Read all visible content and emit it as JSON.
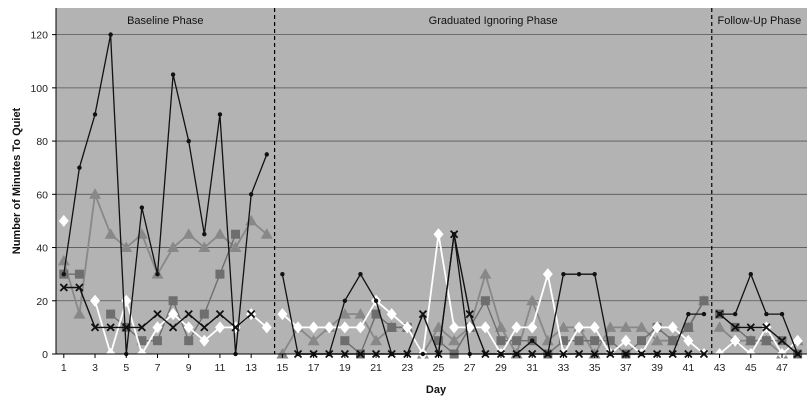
{
  "chart_data": {
    "type": "line",
    "xlabel": "Day",
    "ylabel": "Number of Minutes To Quiet",
    "ylim": [
      0,
      130
    ],
    "xlim": [
      0.5,
      48.6
    ],
    "yticks": [
      0,
      20,
      40,
      60,
      80,
      100,
      120
    ],
    "xticks": [
      1,
      3,
      5,
      7,
      9,
      11,
      13,
      15,
      17,
      19,
      21,
      23,
      25,
      27,
      29,
      31,
      33,
      35,
      37,
      39,
      41,
      43,
      45,
      47
    ],
    "xtick_labels": [
      "1",
      "3",
      "5",
      "7",
      "9",
      "11",
      "13",
      "15",
      "17",
      "19",
      "21",
      "23",
      "25",
      "27",
      "29",
      "31",
      "33",
      "35",
      "37",
      "39",
      "41",
      "43",
      "45",
      "47"
    ],
    "grid": true,
    "plot_background": "#b3b3b3",
    "phases": [
      {
        "label": "Baseline Phase",
        "start": 0.5,
        "end": 14.5
      },
      {
        "label": "Graduated Ignoring Phase",
        "start": 14.5,
        "end": 42.5
      },
      {
        "label": "Follow-Up Phase",
        "start": 42.5,
        "end": 48.6
      }
    ],
    "phase_lines": [
      14.5,
      42.5
    ],
    "series": [
      {
        "marker": "dot",
        "color": "#111111",
        "segments": [
          {
            "x": [
              1,
              2,
              3,
              4,
              5,
              6,
              7,
              8,
              9,
              10,
              11,
              12,
              13,
              14
            ],
            "y": [
              30,
              70,
              90,
              120,
              0,
              55,
              30,
              105,
              80,
              45,
              90,
              0,
              60,
              75
            ]
          },
          {
            "x": [
              15,
              16,
              17,
              18,
              19,
              20,
              21,
              22,
              23,
              24,
              25,
              26,
              27,
              28,
              29,
              30,
              31,
              32,
              33,
              34,
              35,
              36,
              37,
              38,
              39,
              40,
              41,
              42
            ],
            "y": [
              30,
              0,
              0,
              0,
              20,
              30,
              20,
              0,
              0,
              0,
              0,
              45,
              0,
              0,
              0,
              0,
              5,
              0,
              30,
              30,
              30,
              0,
              0,
              0,
              0,
              0,
              15,
              15
            ]
          },
          {
            "x": [
              43,
              44,
              45,
              46,
              47,
              48
            ],
            "y": [
              15,
              15,
              30,
              15,
              15,
              0
            ]
          }
        ]
      },
      {
        "marker": "triangle",
        "color": "#888888",
        "segments": [
          {
            "x": [
              1,
              2,
              3,
              4,
              5,
              6,
              7,
              8,
              9,
              10,
              11,
              12,
              13,
              14
            ],
            "y": [
              35,
              15,
              60,
              45,
              40,
              45,
              30,
              40,
              45,
              40,
              45,
              40,
              50,
              45
            ]
          },
          {
            "x": [
              15,
              16,
              17,
              18,
              19,
              20,
              21,
              22,
              23,
              24,
              25,
              26,
              27,
              28,
              29,
              30,
              31,
              32,
              33,
              34,
              35,
              36,
              37,
              38,
              39,
              40,
              41,
              42
            ],
            "y": [
              0,
              10,
              5,
              10,
              15,
              15,
              5,
              10,
              10,
              0,
              10,
              5,
              10,
              30,
              10,
              0,
              20,
              5,
              10,
              10,
              0,
              10,
              10,
              10,
              5,
              5,
              10,
              20
            ]
          },
          {
            "x": [
              43,
              44,
              45,
              46,
              47,
              48
            ],
            "y": [
              10,
              5,
              5,
              5,
              0,
              5
            ]
          }
        ]
      },
      {
        "marker": "square",
        "color": "#6e6e6e",
        "segments": [
          {
            "x": [
              1,
              2,
              3,
              4,
              5,
              6,
              7,
              8,
              9,
              10,
              11,
              12,
              13,
              14
            ],
            "y": [
              30,
              30,
              null,
              15,
              10,
              5,
              5,
              20,
              5,
              15,
              30,
              45,
              null,
              null
            ]
          },
          {
            "x": [
              15,
              16,
              17,
              18,
              19,
              20,
              21,
              22,
              23,
              24,
              25,
              26,
              27,
              28,
              29,
              30,
              31,
              32,
              33,
              34,
              35,
              36,
              37,
              38,
              39,
              40,
              41,
              42
            ],
            "y": [
              null,
              null,
              null,
              null,
              5,
              0,
              15,
              10,
              10,
              null,
              5,
              0,
              10,
              20,
              5,
              5,
              5,
              0,
              5,
              5,
              5,
              5,
              0,
              5,
              10,
              5,
              10,
              20
            ]
          },
          {
            "x": [
              43,
              44,
              45,
              46,
              47,
              48
            ],
            "y": [
              15,
              10,
              5,
              5,
              5,
              0
            ]
          }
        ]
      },
      {
        "marker": "diamond",
        "color": "#ffffff",
        "segments": [
          {
            "x": [
              1,
              2,
              3,
              4,
              5,
              6,
              7,
              8,
              9,
              10,
              11,
              12,
              13,
              14
            ],
            "y": [
              50,
              null,
              20,
              0,
              20,
              0,
              10,
              15,
              10,
              5,
              10,
              10,
              15,
              10
            ]
          },
          {
            "x": [
              15,
              16,
              17,
              18,
              19,
              20,
              21,
              22,
              23,
              24,
              25,
              26,
              27,
              28,
              29,
              30,
              31,
              32,
              33,
              34,
              35,
              36,
              37,
              38,
              39,
              40,
              41,
              42
            ],
            "y": [
              15,
              10,
              10,
              10,
              10,
              10,
              20,
              15,
              10,
              0,
              45,
              10,
              10,
              10,
              0,
              10,
              10,
              30,
              0,
              10,
              10,
              0,
              5,
              0,
              10,
              10,
              5,
              0
            ]
          },
          {
            "x": [
              43,
              44,
              45,
              46,
              47,
              48
            ],
            "y": [
              0,
              5,
              0,
              10,
              0,
              5
            ]
          }
        ]
      },
      {
        "marker": "x",
        "color": "#111111",
        "segments": [
          {
            "x": [
              1,
              2,
              3,
              4,
              5,
              6,
              7,
              8,
              9,
              10,
              11,
              12,
              13,
              14
            ],
            "y": [
              25,
              25,
              10,
              10,
              10,
              10,
              15,
              10,
              15,
              10,
              15,
              10,
              15,
              null
            ]
          },
          {
            "x": [
              15,
              16,
              17,
              18,
              19,
              20,
              21,
              22,
              23,
              24,
              25,
              26,
              27,
              28,
              29,
              30,
              31,
              32,
              33,
              34,
              35,
              36,
              37,
              38,
              39,
              40,
              41,
              42
            ],
            "y": [
              null,
              0,
              0,
              0,
              0,
              0,
              0,
              0,
              0,
              15,
              0,
              45,
              15,
              0,
              0,
              0,
              0,
              0,
              0,
              0,
              0,
              0,
              0,
              0,
              0,
              0,
              0,
              0
            ]
          },
          {
            "x": [
              43,
              44,
              45,
              46,
              47,
              48
            ],
            "y": [
              15,
              10,
              10,
              10,
              5,
              0
            ]
          }
        ]
      }
    ]
  }
}
